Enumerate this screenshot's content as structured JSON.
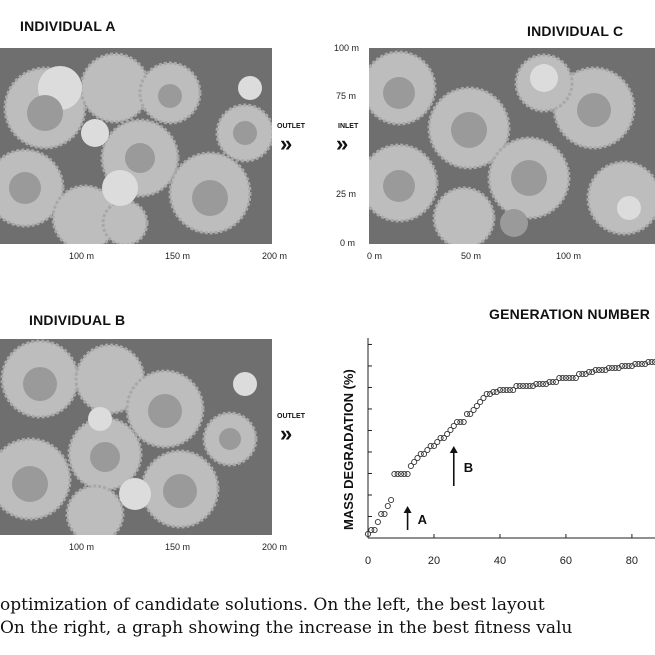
{
  "panels": {
    "a": {
      "title": "INDIVIDUAL A",
      "xticks": [
        "100 m",
        "150 m",
        "200 m"
      ],
      "flow_label": "OUTLET"
    },
    "b": {
      "title": "INDIVIDUAL B",
      "xticks": [
        "100 m",
        "150 m",
        "200 m"
      ],
      "flow_label": "OUTLET"
    },
    "c": {
      "title": "INDIVIDUAL C",
      "xticks": [
        "0 m",
        "50 m",
        "100 m"
      ],
      "yticks": [
        "100 m",
        "75 m",
        "25 m",
        "0 m"
      ],
      "flow_label": "INLET"
    }
  },
  "flow_arrows": "»",
  "chart_data": {
    "type": "scatter",
    "title": "GENERATION NUMBER",
    "xlabel": "",
    "ylabel": "MASS DEGRADATION (%)",
    "xlim": [
      0,
      87
    ],
    "x_ticks": [
      "0",
      "20",
      "40",
      "60",
      "80"
    ],
    "y_ticks_labeled": false,
    "ylim": [
      0,
      100
    ],
    "points_x": [
      0,
      1,
      2,
      3,
      4,
      5,
      6,
      7,
      8,
      9,
      10,
      11,
      12,
      13,
      14,
      15,
      16,
      17,
      18,
      19,
      20,
      21,
      22,
      23,
      24,
      25,
      26,
      27,
      28,
      29,
      30,
      31,
      32,
      33,
      34,
      35,
      36,
      37,
      38,
      39,
      40,
      41,
      42,
      43,
      44,
      45,
      46,
      47,
      48,
      49,
      50,
      51,
      52,
      53,
      54,
      55,
      56,
      57,
      58,
      59,
      60,
      61,
      62,
      63,
      64,
      65,
      66,
      67,
      68,
      69,
      70,
      71,
      72,
      73,
      74,
      75,
      76,
      77,
      78,
      79,
      80,
      81,
      82,
      83,
      84,
      85,
      86,
      87
    ],
    "points_y": [
      2,
      4,
      4,
      8,
      12,
      12,
      16,
      19,
      32,
      32,
      32,
      32,
      32,
      36,
      38,
      40,
      42,
      42,
      44,
      46,
      46,
      48,
      50,
      50,
      52,
      54,
      56,
      58,
      58,
      58,
      62,
      62,
      64,
      66,
      68,
      70,
      72,
      72,
      73,
      73,
      74,
      74,
      74,
      74,
      74,
      76,
      76,
      76,
      76,
      76,
      76,
      77,
      77,
      77,
      77,
      78,
      78,
      78,
      80,
      80,
      80,
      80,
      80,
      80,
      82,
      82,
      82,
      83,
      83,
      84,
      84,
      84,
      84,
      85,
      85,
      85,
      85,
      86,
      86,
      86,
      86,
      87,
      87,
      87,
      87,
      88,
      88,
      88
    ],
    "annotations": [
      {
        "label": "A",
        "x": 12,
        "y": 4
      },
      {
        "label": "B",
        "x": 26,
        "y": 26
      }
    ]
  },
  "caption": {
    "line1": "optimization of candidate solutions. On the left, the best layout",
    "line2": "On the right, a graph showing the increase in the best fitness valu"
  }
}
